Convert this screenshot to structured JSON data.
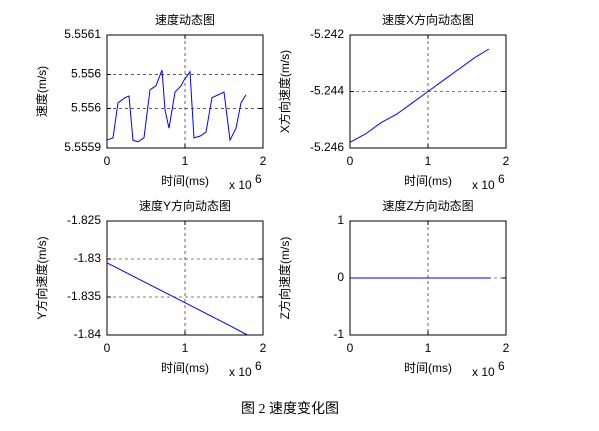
{
  "caption": "图 2 速度变化图",
  "chart_data": [
    {
      "type": "line",
      "title": "速度动态图",
      "xlabel": "时间(ms)",
      "ylabel": "速度(m/s)",
      "x_scale_label": "x 10",
      "x_scale_exponent": "6",
      "color": "#0000ff",
      "grid": true,
      "xlim": [
        0,
        2
      ],
      "xticks": [
        0,
        1,
        2
      ],
      "ylim": [
        5.5559,
        5.5561
      ],
      "yticks": [
        {
          "value": 5.5559,
          "label": "5.5559"
        },
        {
          "value": 5.55597,
          "label": "5.556"
        },
        {
          "value": 5.55603,
          "label": "5.556"
        },
        {
          "value": 5.5561,
          "label": "5.5561"
        }
      ],
      "x": [
        0,
        0.077,
        0.141,
        0.231,
        0.282,
        0.333,
        0.397,
        0.474,
        0.551,
        0.628,
        0.705,
        0.744,
        0.795,
        0.872,
        0.949,
        0.987,
        1.064,
        1.115,
        1.192,
        1.269,
        1.346,
        1.423,
        1.5,
        1.577,
        1.654,
        1.718,
        1.782
      ],
      "values": [
        5.555914,
        5.555918,
        5.55598,
        5.555989,
        5.555992,
        5.555914,
        5.555911,
        5.555918,
        5.556003,
        5.55601,
        5.556038,
        5.555967,
        5.555935,
        5.555999,
        5.55601,
        5.55602,
        5.556035,
        5.555918,
        5.555921,
        5.555928,
        5.555989,
        5.555994,
        5.555999,
        5.555914,
        5.555935,
        5.55598,
        5.555994
      ]
    },
    {
      "type": "line",
      "title": "速度X方向动态图",
      "xlabel": "时间(ms)",
      "ylabel": "X方向速度(m/s)",
      "x_scale_label": "x 10",
      "x_scale_exponent": "6",
      "color": "#0000ff",
      "grid": true,
      "xlim": [
        0,
        2
      ],
      "xticks": [
        0,
        1,
        2
      ],
      "ylim": [
        -5.246,
        -5.242
      ],
      "yticks": [
        -5.246,
        -5.244,
        -5.242
      ],
      "x": [
        0,
        0.2,
        0.4,
        0.6,
        0.8,
        1.0,
        1.2,
        1.4,
        1.6,
        1.78
      ],
      "values": [
        -5.2458,
        -5.2455,
        -5.2451,
        -5.2448,
        -5.2444,
        -5.244,
        -5.2436,
        -5.2432,
        -5.2428,
        -5.2425
      ]
    },
    {
      "type": "line",
      "title": "速度Y方向动态图",
      "xlabel": "时间(ms)",
      "ylabel": "Y方向速度(m/s)",
      "x_scale_label": "x 10",
      "x_scale_exponent": "6",
      "color": "#0000ff",
      "grid": true,
      "xlim": [
        0,
        2
      ],
      "xticks": [
        0,
        1,
        2
      ],
      "ylim": [
        -1.84,
        -1.825
      ],
      "yticks": [
        -1.84,
        -1.835,
        -1.83,
        -1.825
      ],
      "x": [
        0,
        0.4,
        0.8,
        1.2,
        1.6,
        1.8
      ],
      "values": [
        -1.8305,
        -1.8326,
        -1.8347,
        -1.8368,
        -1.8389,
        -1.84
      ]
    },
    {
      "type": "line",
      "title": "速度Z方向动态图",
      "xlabel": "时间(ms)",
      "ylabel": "Z方向速度(m/s)",
      "x_scale_label": "x 10",
      "x_scale_exponent": "6",
      "color": "#0000ff",
      "grid": true,
      "xlim": [
        0,
        2
      ],
      "xticks": [
        0,
        1,
        2
      ],
      "ylim": [
        -1,
        1
      ],
      "yticks": [
        -1,
        0,
        1
      ],
      "x": [
        0,
        1.8
      ],
      "values": [
        0,
        0
      ]
    }
  ]
}
